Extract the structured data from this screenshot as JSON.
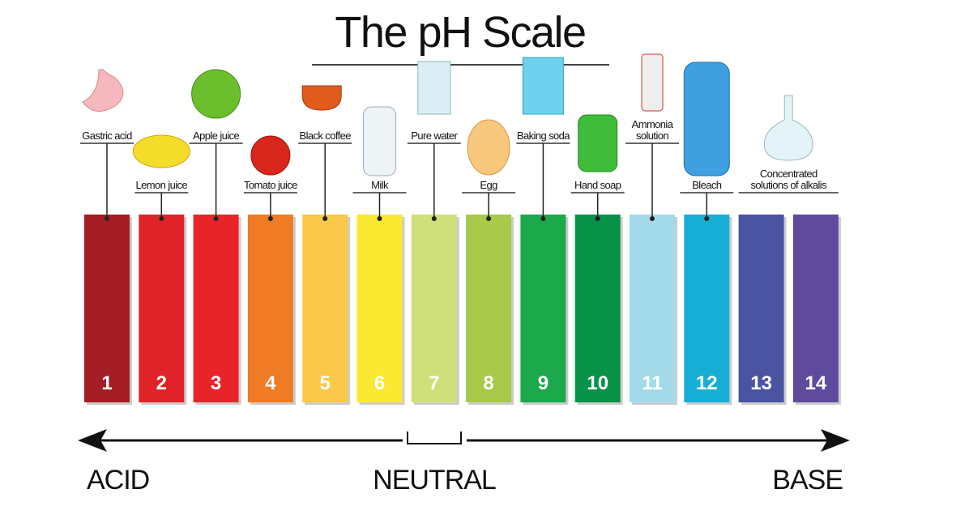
{
  "title": "The pH Scale",
  "scale": [
    {
      "number": "1",
      "color": "#a51d24",
      "item": [
        "Gastric acid"
      ],
      "row": "high"
    },
    {
      "number": "2",
      "color": "#df2329",
      "item": [
        "Lemon juice"
      ],
      "row": "low"
    },
    {
      "number": "3",
      "color": "#e8242a",
      "item": [
        "Apple juice"
      ],
      "row": "high"
    },
    {
      "number": "4",
      "color": "#ef7b25",
      "item": [
        "Tomato juice"
      ],
      "row": "low"
    },
    {
      "number": "5",
      "color": "#fcc84a",
      "item": [
        "Black coffee"
      ],
      "row": "high"
    },
    {
      "number": "6",
      "color": "#fbe831",
      "item": [
        "Milk"
      ],
      "row": "low"
    },
    {
      "number": "7",
      "color": "#cfe07a",
      "item": [
        "Pure water"
      ],
      "row": "high"
    },
    {
      "number": "8",
      "color": "#a9c94a",
      "item": [
        "Egg"
      ],
      "row": "low"
    },
    {
      "number": "9",
      "color": "#1ca94b",
      "item": [
        "Baking soda"
      ],
      "row": "high"
    },
    {
      "number": "10",
      "color": "#079247",
      "item": [
        "Hand soap"
      ],
      "row": "low"
    },
    {
      "number": "11",
      "color": "#a3daea",
      "item": [
        "Ammonia",
        "solution"
      ],
      "row": "high"
    },
    {
      "number": "12",
      "color": "#17aed6",
      "item": [
        "Bleach"
      ],
      "row": "low"
    },
    {
      "number": "13",
      "color": "#4b54a3",
      "item": [
        "Concentrated",
        "solutions of alkalis"
      ],
      "row": "low"
    },
    {
      "number": "14",
      "color": "#5e4b9e"
    }
  ],
  "directions": {
    "acid": "ACID",
    "neutral": "NEUTRAL",
    "base": "BASE"
  }
}
